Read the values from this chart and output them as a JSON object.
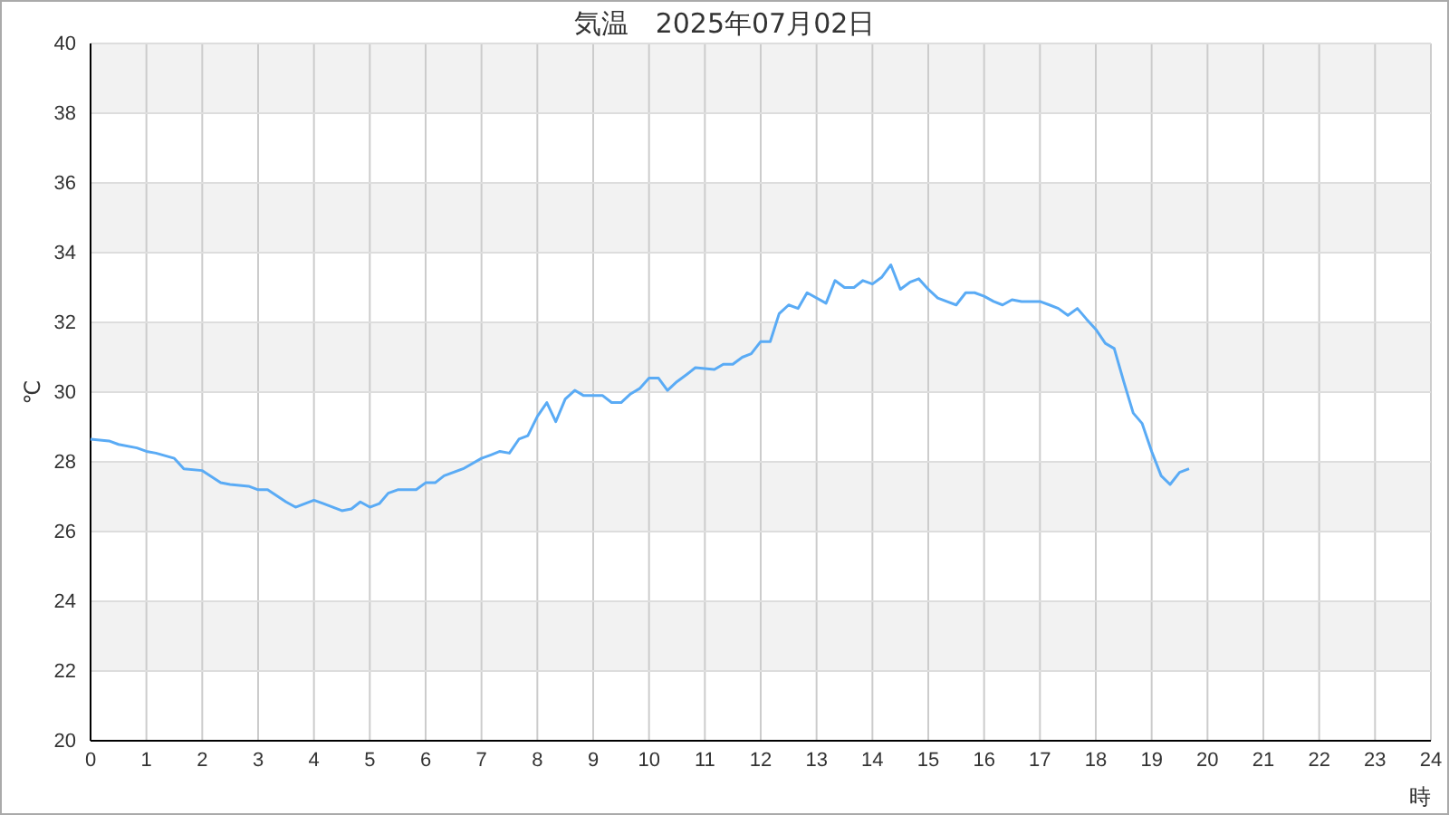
{
  "chart_data": {
    "type": "line",
    "title": "気温　2025年07月02日",
    "xlabel": "時",
    "ylabel": "℃",
    "xlim": [
      0,
      24
    ],
    "xticks": [
      0,
      1,
      2,
      3,
      4,
      5,
      6,
      7,
      8,
      9,
      10,
      11,
      12,
      13,
      14,
      15,
      16,
      17,
      18,
      19,
      20,
      21,
      22,
      23,
      24
    ],
    "ylim": [
      20,
      40
    ],
    "yticks": [
      20,
      22,
      24,
      26,
      28,
      30,
      32,
      34,
      36,
      38,
      40
    ],
    "grid": true,
    "marker": "none",
    "line_style": "solid",
    "x": [
      0,
      0.33,
      0.5,
      0.83,
      1,
      1.17,
      1.5,
      1.67,
      2,
      2.33,
      2.5,
      2.83,
      3,
      3.17,
      3.5,
      3.67,
      4,
      4.17,
      4.5,
      4.67,
      4.83,
      5,
      5.17,
      5.33,
      5.5,
      5.83,
      6,
      6.17,
      6.33,
      6.67,
      7,
      7.17,
      7.33,
      7.5,
      7.67,
      7.83,
      8,
      8.17,
      8.33,
      8.5,
      8.67,
      8.83,
      9.17,
      9.33,
      9.5,
      9.67,
      9.83,
      10,
      10.17,
      10.33,
      10.5,
      10.67,
      10.83,
      11.17,
      11.33,
      11.5,
      11.67,
      11.83,
      12,
      12.17,
      12.33,
      12.5,
      12.67,
      12.83,
      13.17,
      13.33,
      13.5,
      13.67,
      13.83,
      14,
      14.17,
      14.33,
      14.5,
      14.67,
      14.83,
      15,
      15.17,
      15.33,
      15.5,
      15.67,
      15.83,
      16,
      16.17,
      16.33,
      16.5,
      16.67,
      17,
      17.17,
      17.33,
      17.5,
      17.67,
      17.83,
      18,
      18.17,
      18.33,
      18.5,
      18.67,
      18.83,
      19,
      19.17,
      19.33,
      19.5,
      19.67
    ],
    "series": [
      {
        "color": "#5aabf5",
        "values": [
          28.65,
          28.6,
          28.5,
          28.4,
          28.3,
          28.25,
          28.1,
          27.8,
          27.75,
          27.4,
          27.35,
          27.3,
          27.2,
          27.2,
          26.85,
          26.7,
          26.9,
          26.8,
          26.6,
          26.65,
          26.85,
          26.7,
          26.8,
          27.1,
          27.2,
          27.2,
          27.4,
          27.4,
          27.6,
          27.8,
          28.1,
          28.2,
          28.3,
          28.25,
          28.65,
          28.75,
          29.3,
          29.7,
          29.15,
          29.8,
          30.05,
          29.9,
          29.9,
          29.7,
          29.7,
          29.95,
          30.1,
          30.4,
          30.4,
          30.05,
          30.3,
          30.5,
          30.7,
          30.65,
          30.8,
          30.8,
          31,
          31.1,
          31.45,
          31.45,
          32.25,
          32.5,
          32.4,
          32.85,
          32.55,
          33.2,
          33,
          33,
          33.2,
          33.1,
          33.3,
          33.65,
          32.95,
          33.15,
          33.25,
          32.95,
          32.7,
          32.6,
          32.5,
          32.85,
          32.85,
          32.75,
          32.6,
          32.5,
          32.65,
          32.6,
          32.6,
          32.5,
          32.4,
          32.2,
          32.4,
          32.1,
          31.8,
          31.4,
          31.25,
          30.3,
          29.4,
          29.1,
          28.3,
          27.6,
          27.35,
          27.7,
          27.8
        ]
      }
    ]
  }
}
